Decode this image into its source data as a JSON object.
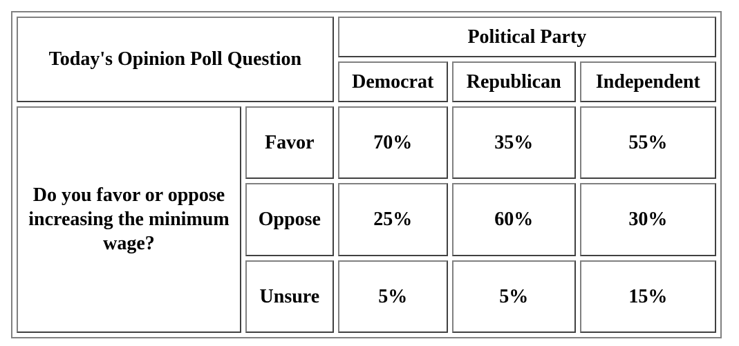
{
  "header": {
    "title": "Today's Opinion Poll Question",
    "group_label": "Political Party",
    "columns": [
      "Democrat",
      "Republican",
      "Independent"
    ]
  },
  "question": "Do you favor or oppose increasing the minimum wage?",
  "rows": [
    {
      "label": "Favor",
      "values": [
        "70%",
        "35%",
        "55%"
      ]
    },
    {
      "label": "Oppose",
      "values": [
        "25%",
        "60%",
        "30%"
      ]
    },
    {
      "label": "Unsure",
      "values": [
        "5%",
        "5%",
        "15%"
      ]
    }
  ]
}
